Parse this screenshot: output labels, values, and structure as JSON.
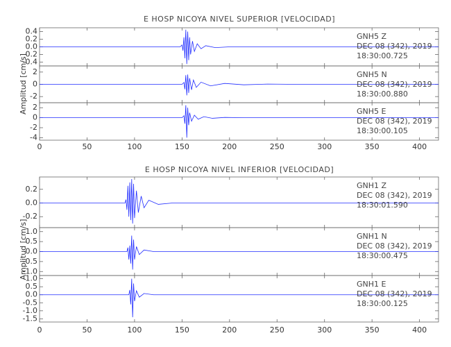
{
  "chart_data": [
    {
      "type": "line",
      "title": "E HOSP NICOYA NIVEL SUPERIOR [VELOCIDAD]",
      "ylabel": "Amplitud [cm/s]",
      "color": "#1f2bff",
      "xlim": [
        0,
        420
      ],
      "xticks": [
        0,
        50,
        100,
        150,
        200,
        250,
        300,
        350,
        400
      ],
      "panels": [
        {
          "annotation": [
            "GNH5   Z",
            "DEC 08 (342), 2019",
            "18:30:00.725"
          ],
          "ylim": [
            -0.5,
            0.5
          ],
          "yticks": [
            0.4,
            0.2,
            {
              "value": 0,
              "label": "0.0"
            },
            -0.2,
            -0.4
          ],
          "x": [
            0,
            148,
            150,
            151,
            152,
            153,
            154,
            155,
            156,
            157,
            158,
            159,
            161,
            163,
            166,
            170,
            175,
            185,
            200,
            420
          ],
          "values": [
            0,
            0,
            0.05,
            -0.1,
            0.25,
            -0.3,
            0.45,
            -0.45,
            0.4,
            -0.35,
            0.25,
            -0.2,
            0.15,
            -0.12,
            0.08,
            -0.05,
            0.03,
            -0.02,
            0,
            0
          ]
        },
        {
          "annotation": [
            "GNH5   N",
            "DEC 08 (342), 2019",
            "18:30:00.880"
          ],
          "ylim": [
            -3,
            3
          ],
          "yticks": [
            2,
            0,
            -2
          ],
          "x": [
            0,
            150,
            152,
            153,
            154,
            155,
            156,
            157,
            158,
            160,
            162,
            165,
            170,
            180,
            195,
            215,
            240,
            270,
            420
          ],
          "values": [
            0,
            0,
            0.3,
            -0.8,
            1.5,
            -1.8,
            1.6,
            -1.4,
            1.0,
            -0.9,
            0.7,
            -0.5,
            0.35,
            -0.25,
            0.15,
            -0.08,
            0.04,
            0,
            0
          ]
        },
        {
          "annotation": [
            "GNH5   E",
            "DEC 08 (342), 2019",
            "18:30:00.105"
          ],
          "ylim": [
            -4.5,
            3
          ],
          "yticks": [
            2,
            0,
            -2,
            -4
          ],
          "x": [
            0,
            150,
            152,
            153,
            154,
            155,
            156,
            157,
            158,
            160,
            163,
            167,
            173,
            182,
            195,
            215,
            420
          ],
          "values": [
            0,
            0,
            0.4,
            -1.2,
            2.5,
            -4.0,
            2.0,
            -1.5,
            1.0,
            -0.7,
            0.5,
            -0.3,
            0.2,
            -0.12,
            0.06,
            0,
            0
          ]
        }
      ]
    },
    {
      "type": "line",
      "title": "E HOSP NICOYA NIVEL INFERIOR [VELOCIDAD]",
      "ylabel": "Amplitud [cm/s]",
      "color": "#1f2bff",
      "xlim": [
        0,
        420
      ],
      "xticks": [
        0,
        50,
        100,
        150,
        200,
        250,
        300,
        350,
        400
      ],
      "panels": [
        {
          "annotation": [
            "GNH1   Z",
            "DEC 08 (342), 2019",
            "18:30:01.590"
          ],
          "ylim": [
            -0.36,
            0.38
          ],
          "yticks": [
            0.2,
            {
              "value": 0,
              "label": "0.0"
            },
            -0.2
          ],
          "x": [
            0,
            90,
            91,
            92,
            93,
            94,
            95,
            96,
            97,
            98,
            99,
            100,
            102,
            104,
            107,
            110,
            115,
            125,
            140,
            420
          ],
          "values": [
            0,
            0,
            0.05,
            -0.1,
            0.25,
            -0.2,
            0.3,
            -0.25,
            0.35,
            -0.3,
            0.28,
            -0.22,
            0.18,
            -0.14,
            0.1,
            -0.07,
            0.04,
            -0.02,
            0,
            0
          ]
        },
        {
          "annotation": [
            "GNH1   N",
            "DEC 08 (342), 2019",
            "18:30:00.475"
          ],
          "ylim": [
            -1.2,
            1.2
          ],
          "yticks": [
            {
              "value": 1,
              "label": "1.0"
            },
            0.5,
            {
              "value": 0,
              "label": "0.0"
            },
            -0.5,
            {
              "value": -1,
              "label": "-1.0"
            }
          ],
          "x": [
            0,
            92,
            93,
            94,
            95,
            96,
            97,
            98,
            99,
            100,
            102,
            105,
            110,
            120,
            420
          ],
          "values": [
            0,
            0,
            0.2,
            -0.4,
            0.3,
            -0.6,
            0.8,
            -0.9,
            0.6,
            -0.4,
            0.25,
            -0.15,
            0.08,
            0,
            0
          ]
        },
        {
          "annotation": [
            "GNH1   E",
            "DEC 08 (342), 2019",
            "18:30:00.125"
          ],
          "ylim": [
            -1.7,
            1.2
          ],
          "yticks": [
            {
              "value": 1,
              "label": "1.0"
            },
            0.5,
            {
              "value": 0,
              "label": "0.0"
            },
            -0.5,
            {
              "value": -1,
              "label": "-1.0"
            },
            -1.5
          ],
          "x": [
            0,
            94,
            95,
            96,
            97,
            98,
            99,
            100,
            102,
            105,
            110,
            120,
            420
          ],
          "values": [
            0,
            0,
            0.3,
            -0.6,
            1.0,
            -1.4,
            0.7,
            -0.4,
            0.25,
            -0.15,
            0.08,
            0,
            0
          ]
        }
      ]
    }
  ]
}
